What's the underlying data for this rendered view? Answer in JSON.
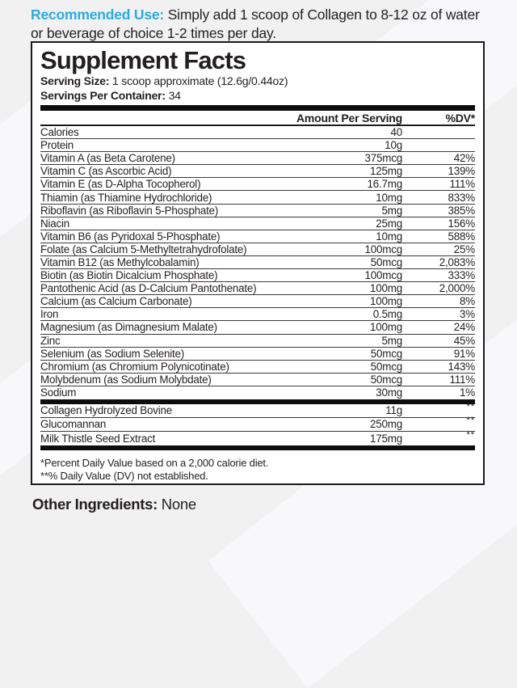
{
  "colors": {
    "accent": "#29abe2",
    "text": "#231f20",
    "page_bg": "#f1f1f2",
    "panel_bg": "#ffffff",
    "border": "#1a1a1a"
  },
  "recommended_use": {
    "label": "Recommended Use:",
    "text": " Simply add 1 scoop of Collagen to 8-12 oz of water or beverage of choice 1-2 times per day."
  },
  "panel": {
    "title": "Supplement Facts",
    "serving_size_label": "Serving Size:",
    "serving_size_value": " 1 scoop approximate (12.6g/0.44oz)",
    "servings_per_container_label": "Servings Per Container:",
    "servings_per_container_value": " 34",
    "columns": {
      "amount": "Amount Per Serving",
      "dv": "%DV*"
    },
    "rows": [
      {
        "name": "Calories",
        "amount": "40",
        "dv": ""
      },
      {
        "name": "Protein",
        "amount": "10g",
        "dv": ""
      },
      {
        "name": "Vitamin A (as Beta Carotene)",
        "amount": "375mcg",
        "dv": "42%"
      },
      {
        "name": "Vitamin C (as Ascorbic Acid)",
        "amount": "125mg",
        "dv": "139%"
      },
      {
        "name": "Vitamin E (as D-Alpha Tocopherol)",
        "amount": "16.7mg",
        "dv": "111%"
      },
      {
        "name": "Thiamin (as Thiamine Hydrochloride)",
        "amount": "10mg",
        "dv": "833%"
      },
      {
        "name": "Riboflavin (as Riboflavin 5-Phosphate)",
        "amount": "5mg",
        "dv": "385%"
      },
      {
        "name": "Niacin",
        "amount": "25mg",
        "dv": "156%"
      },
      {
        "name": "Vitamin B6 (as Pyridoxal 5-Phosphate)",
        "amount": "10mg",
        "dv": "588%"
      },
      {
        "name": "Folate (as Calcium 5-Methyltetrahydrofolate)",
        "amount": "100mcg",
        "dv": "25%"
      },
      {
        "name": "Vitamin B12 (as Methylcobalamin)",
        "amount": "50mcg",
        "dv": "2,083%"
      },
      {
        "name": "Biotin (as Biotin Dicalcium Phosphate)",
        "amount": "100mcg",
        "dv": "333%"
      },
      {
        "name": "Pantothenic Acid (as D-Calcium Pantothenate)",
        "amount": "100mg",
        "dv": "2,000%"
      },
      {
        "name": "Calcium (as Calcium Carbonate)",
        "amount": "100mg",
        "dv": "8%"
      },
      {
        "name": "Iron",
        "amount": "0.5mg",
        "dv": "3%"
      },
      {
        "name": "Magnesium (as Dimagnesium Malate)",
        "amount": "100mg",
        "dv": "24%"
      },
      {
        "name": "Zinc",
        "amount": "5mg",
        "dv": "45%"
      },
      {
        "name": "Selenium (as Sodium Selenite)",
        "amount": "50mcg",
        "dv": "91%"
      },
      {
        "name": "Chromium (as Chromium Polynicotinate)",
        "amount": "50mcg",
        "dv": "143%"
      },
      {
        "name": "Molybdenum (as Sodium Molybdate)",
        "amount": "50mcg",
        "dv": "111%"
      },
      {
        "name": "Sodium",
        "amount": "30mg",
        "dv": "1%"
      }
    ],
    "secondary_rows": [
      {
        "name": "Collagen Hydrolyzed Bovine",
        "amount": "11g",
        "dv": "**"
      },
      {
        "name": "Glucomannan",
        "amount": "250mg",
        "dv": "**"
      },
      {
        "name": "Milk Thistle Seed Extract",
        "amount": "175mg",
        "dv": "**"
      }
    ],
    "footnotes": [
      "*Percent Daily Value based on a 2,000 calorie diet.",
      "**% Daily Value (DV) not established."
    ]
  },
  "other_ingredients": {
    "label": "Other Ingredients:",
    "value": " None"
  }
}
